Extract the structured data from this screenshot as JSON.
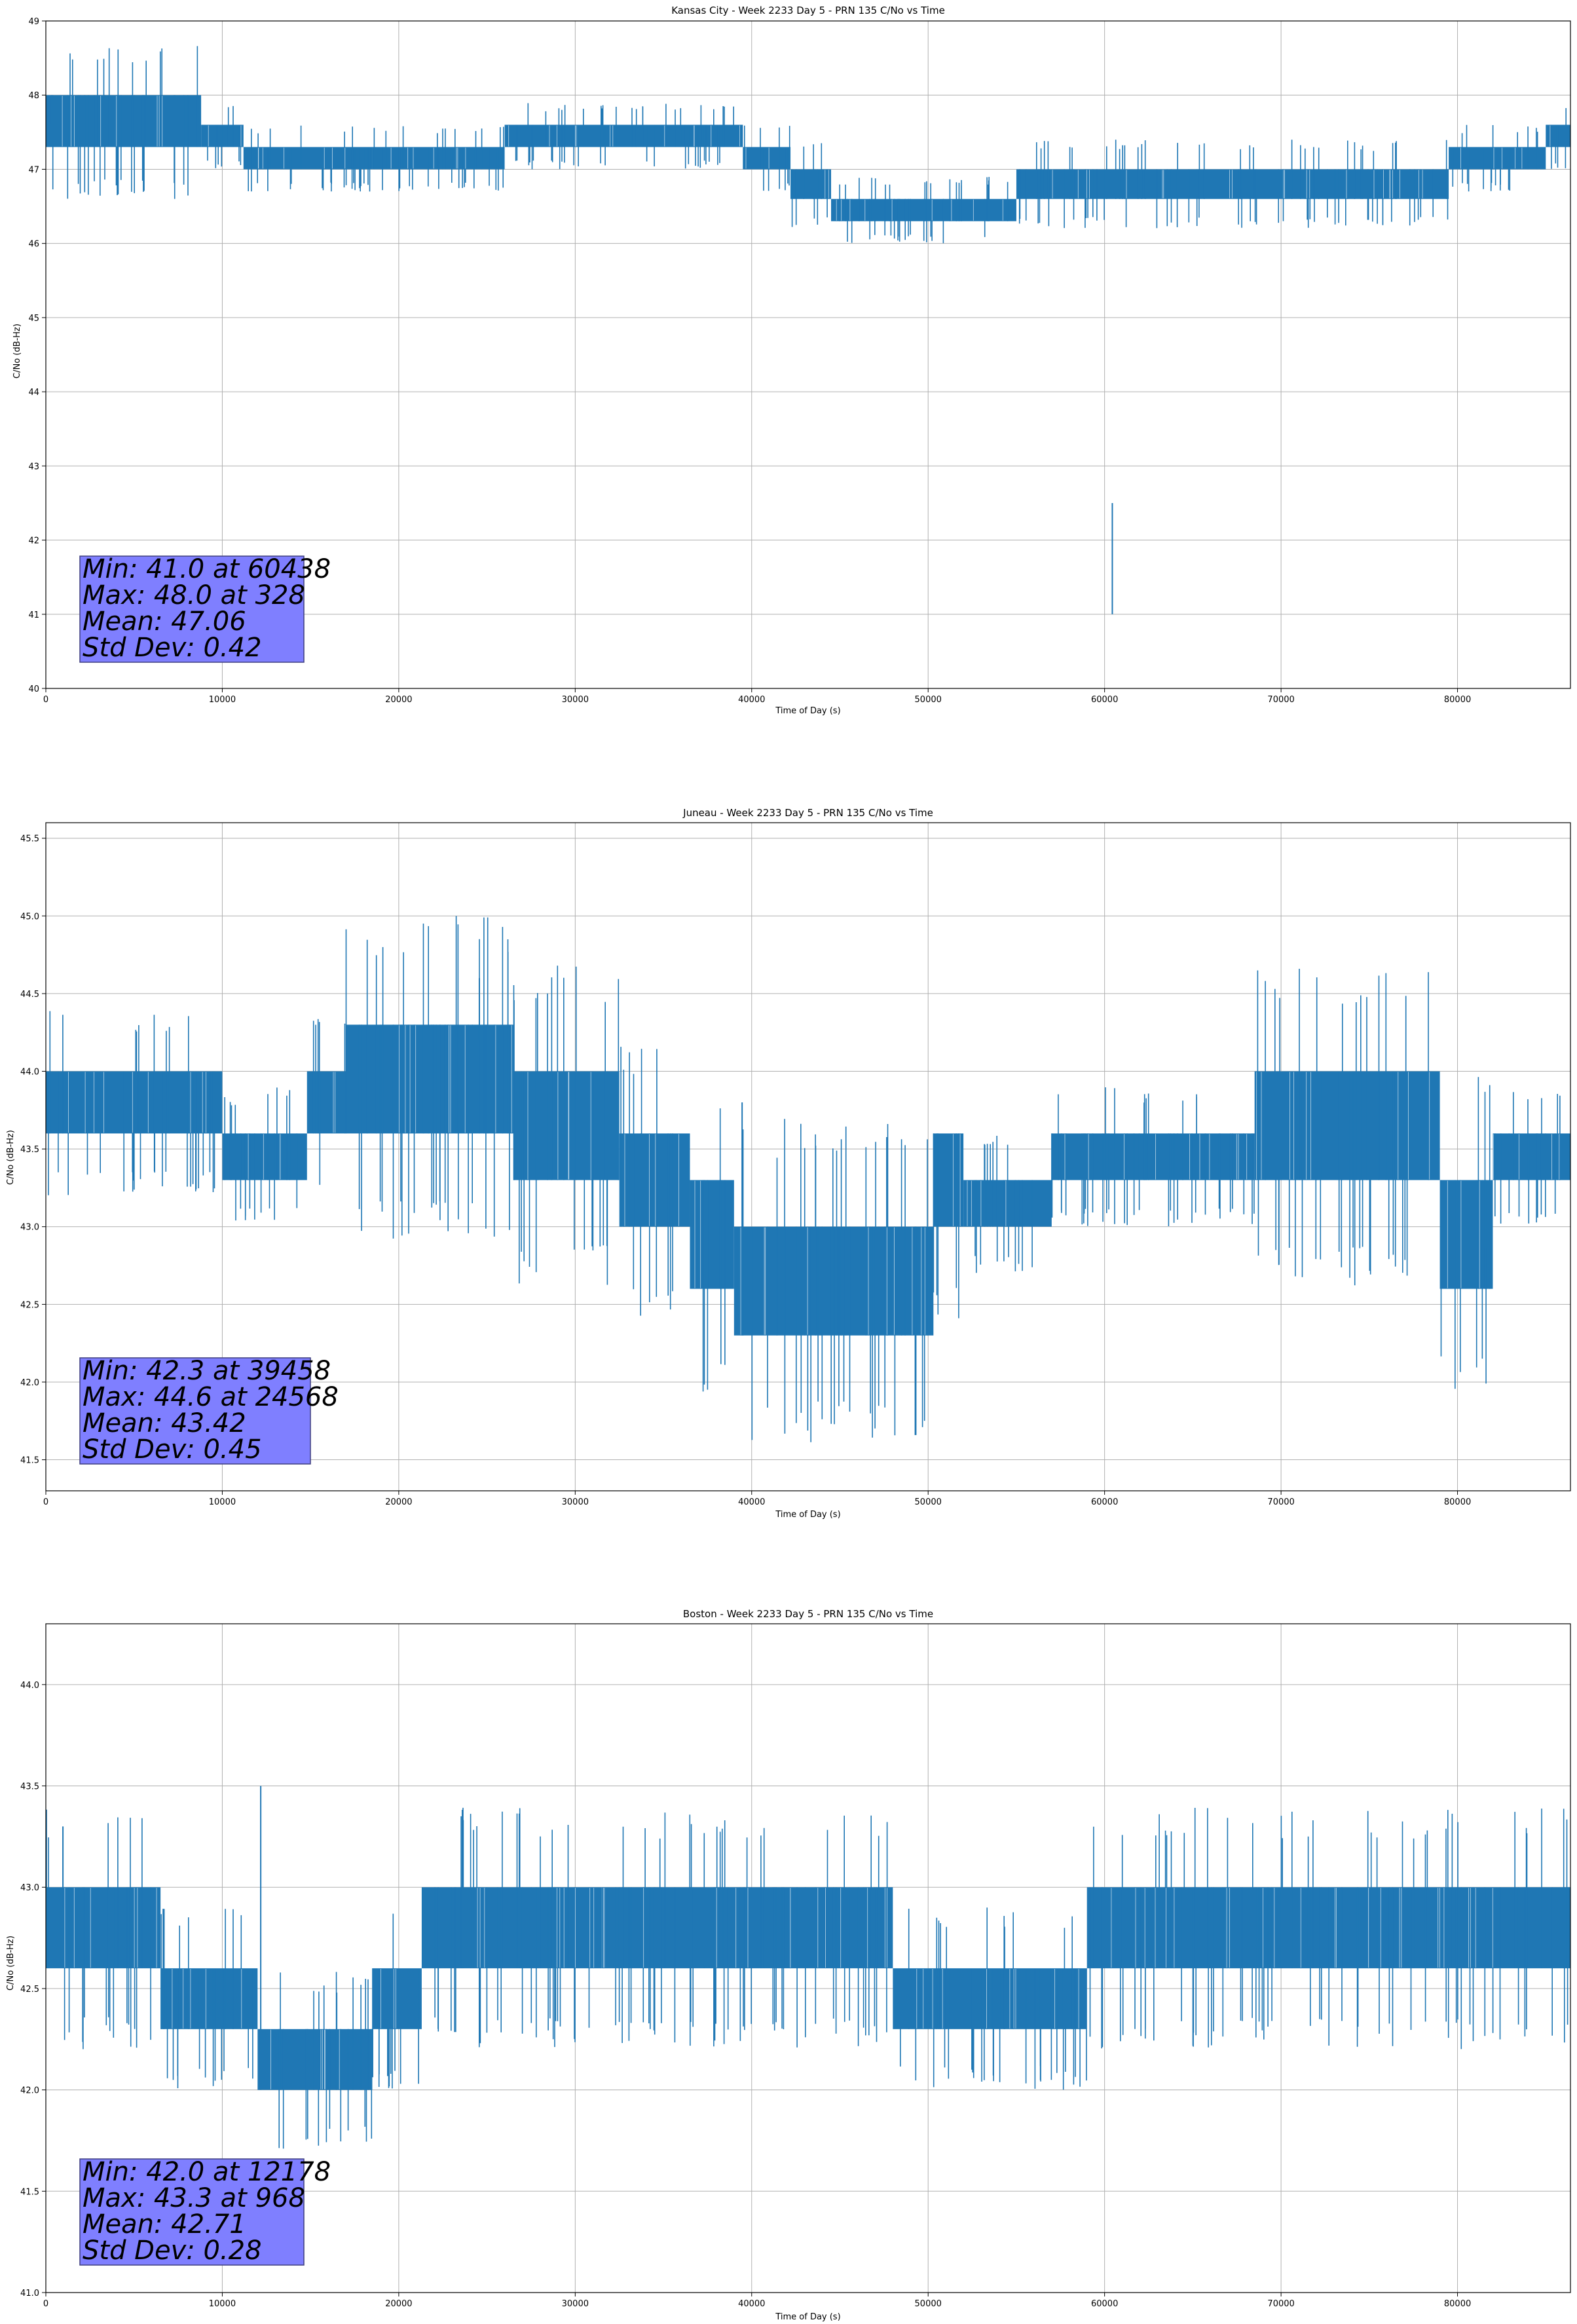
{
  "chart_data": [
    {
      "type": "line",
      "title": "Kansas City - Week 2233 Day 5 - PRN 135 C/No vs Time",
      "xlabel": "Time of Day (s)",
      "ylabel": "C/No (dB-Hz)",
      "xlim": [
        0,
        86400
      ],
      "ylim": [
        40,
        49
      ],
      "xticks": [
        0,
        10000,
        20000,
        30000,
        40000,
        50000,
        60000,
        70000,
        80000
      ],
      "yticks": [
        40,
        41,
        42,
        43,
        44,
        45,
        46,
        47,
        48,
        49
      ],
      "ytick_labels": [
        "40",
        "41",
        "42",
        "43",
        "44",
        "45",
        "46",
        "47",
        "48",
        "49"
      ],
      "grid": true,
      "series_color": "#1f77b4",
      "bands": [
        {
          "x0": 0,
          "x1": 8800,
          "lo": 47.3,
          "hi": 48.0
        },
        {
          "x0": 8800,
          "x1": 11200,
          "lo": 47.3,
          "hi": 47.6
        },
        {
          "x0": 11200,
          "x1": 18500,
          "lo": 47.0,
          "hi": 47.3
        },
        {
          "x0": 18500,
          "x1": 26000,
          "lo": 47.0,
          "hi": 47.3
        },
        {
          "x0": 26000,
          "x1": 39500,
          "lo": 47.3,
          "hi": 47.6
        },
        {
          "x0": 39500,
          "x1": 42200,
          "lo": 47.0,
          "hi": 47.3
        },
        {
          "x0": 42200,
          "x1": 44500,
          "lo": 46.6,
          "hi": 47.0
        },
        {
          "x0": 44500,
          "x1": 55000,
          "lo": 46.3,
          "hi": 46.6
        },
        {
          "x0": 55000,
          "x1": 79500,
          "lo": 46.6,
          "hi": 47.0
        },
        {
          "x0": 79500,
          "x1": 85000,
          "lo": 47.0,
          "hi": 47.3
        },
        {
          "x0": 85000,
          "x1": 86400,
          "lo": 47.3,
          "hi": 47.6
        }
      ],
      "annotations": {
        "min": "Min: 41.0 at 60438",
        "max": "Max: 48.0 at 328",
        "mean": "Mean: 47.06",
        "std": "Std Dev: 0.42"
      }
    },
    {
      "type": "line",
      "title": "Juneau - Week 2233 Day 5 - PRN 135 C/No vs Time",
      "xlabel": "Time of Day (s)",
      "ylabel": "C/No (dB-Hz)",
      "xlim": [
        0,
        86400
      ],
      "ylim": [
        41.3,
        45.6
      ],
      "xticks": [
        0,
        10000,
        20000,
        30000,
        40000,
        50000,
        60000,
        70000,
        80000
      ],
      "yticks": [
        41.5,
        42.0,
        42.5,
        43.0,
        43.5,
        44.0,
        44.5,
        45.0,
        45.5
      ],
      "ytick_labels": [
        "41.5",
        "42.0",
        "42.5",
        "43.0",
        "43.5",
        "44.0",
        "44.5",
        "45.0",
        "45.5"
      ],
      "grid": true,
      "series_color": "#1f77b4",
      "bands": [
        {
          "x0": 0,
          "x1": 10000,
          "lo": 43.6,
          "hi": 44.0
        },
        {
          "x0": 10000,
          "x1": 14800,
          "lo": 43.3,
          "hi": 43.6
        },
        {
          "x0": 14800,
          "x1": 17000,
          "lo": 43.6,
          "hi": 44.0
        },
        {
          "x0": 17000,
          "x1": 26500,
          "lo": 43.6,
          "hi": 44.3
        },
        {
          "x0": 26500,
          "x1": 32500,
          "lo": 43.3,
          "hi": 44.0
        },
        {
          "x0": 32500,
          "x1": 36500,
          "lo": 43.0,
          "hi": 43.6
        },
        {
          "x0": 36500,
          "x1": 39000,
          "lo": 42.6,
          "hi": 43.3
        },
        {
          "x0": 39000,
          "x1": 50300,
          "lo": 42.3,
          "hi": 43.0
        },
        {
          "x0": 50300,
          "x1": 52000,
          "lo": 43.0,
          "hi": 43.6
        },
        {
          "x0": 52000,
          "x1": 57000,
          "lo": 43.0,
          "hi": 43.3
        },
        {
          "x0": 57000,
          "x1": 68500,
          "lo": 43.3,
          "hi": 43.6
        },
        {
          "x0": 68500,
          "x1": 79000,
          "lo": 43.3,
          "hi": 44.0
        },
        {
          "x0": 79000,
          "x1": 82000,
          "lo": 42.6,
          "hi": 43.3
        },
        {
          "x0": 82000,
          "x1": 86400,
          "lo": 43.3,
          "hi": 43.6
        }
      ],
      "annotations": {
        "min": "Min: 42.3 at 39458",
        "max": "Max: 44.6 at 24568",
        "mean": "Mean: 43.42",
        "std": "Std Dev: 0.45"
      }
    },
    {
      "type": "line",
      "title": "Boston - Week 2233 Day 5 - PRN 135 C/No vs Time",
      "xlabel": "Time of Day (s)",
      "ylabel": "C/No (dB-Hz)",
      "xlim": [
        0,
        86400
      ],
      "ylim": [
        41.0,
        44.3
      ],
      "xticks": [
        0,
        10000,
        20000,
        30000,
        40000,
        50000,
        60000,
        70000,
        80000
      ],
      "yticks": [
        41.0,
        41.5,
        42.0,
        42.5,
        43.0,
        43.5,
        44.0
      ],
      "ytick_labels": [
        "41.0",
        "41.5",
        "42.0",
        "42.5",
        "43.0",
        "43.5",
        "44.0"
      ],
      "grid": true,
      "series_color": "#1f77b4",
      "bands": [
        {
          "x0": 0,
          "x1": 6500,
          "lo": 42.6,
          "hi": 43.0
        },
        {
          "x0": 6500,
          "x1": 12000,
          "lo": 42.3,
          "hi": 42.6
        },
        {
          "x0": 12000,
          "x1": 18500,
          "lo": 42.0,
          "hi": 42.3
        },
        {
          "x0": 18500,
          "x1": 21300,
          "lo": 42.3,
          "hi": 42.6
        },
        {
          "x0": 21300,
          "x1": 25000,
          "lo": 42.6,
          "hi": 43.0
        },
        {
          "x0": 25000,
          "x1": 31500,
          "lo": 42.6,
          "hi": 43.0
        },
        {
          "x0": 31500,
          "x1": 48000,
          "lo": 42.6,
          "hi": 43.0
        },
        {
          "x0": 48000,
          "x1": 53500,
          "lo": 42.3,
          "hi": 42.6
        },
        {
          "x0": 53500,
          "x1": 59000,
          "lo": 42.3,
          "hi": 42.6
        },
        {
          "x0": 59000,
          "x1": 67000,
          "lo": 42.6,
          "hi": 43.0
        },
        {
          "x0": 67000,
          "x1": 75000,
          "lo": 42.6,
          "hi": 43.0
        },
        {
          "x0": 75000,
          "x1": 86400,
          "lo": 42.6,
          "hi": 43.0
        }
      ],
      "annotations": {
        "min": "Min: 42.0 at 12178",
        "max": "Max: 43.3 at 968",
        "mean": "Mean: 42.71",
        "std": "Std Dev: 0.28"
      }
    }
  ]
}
